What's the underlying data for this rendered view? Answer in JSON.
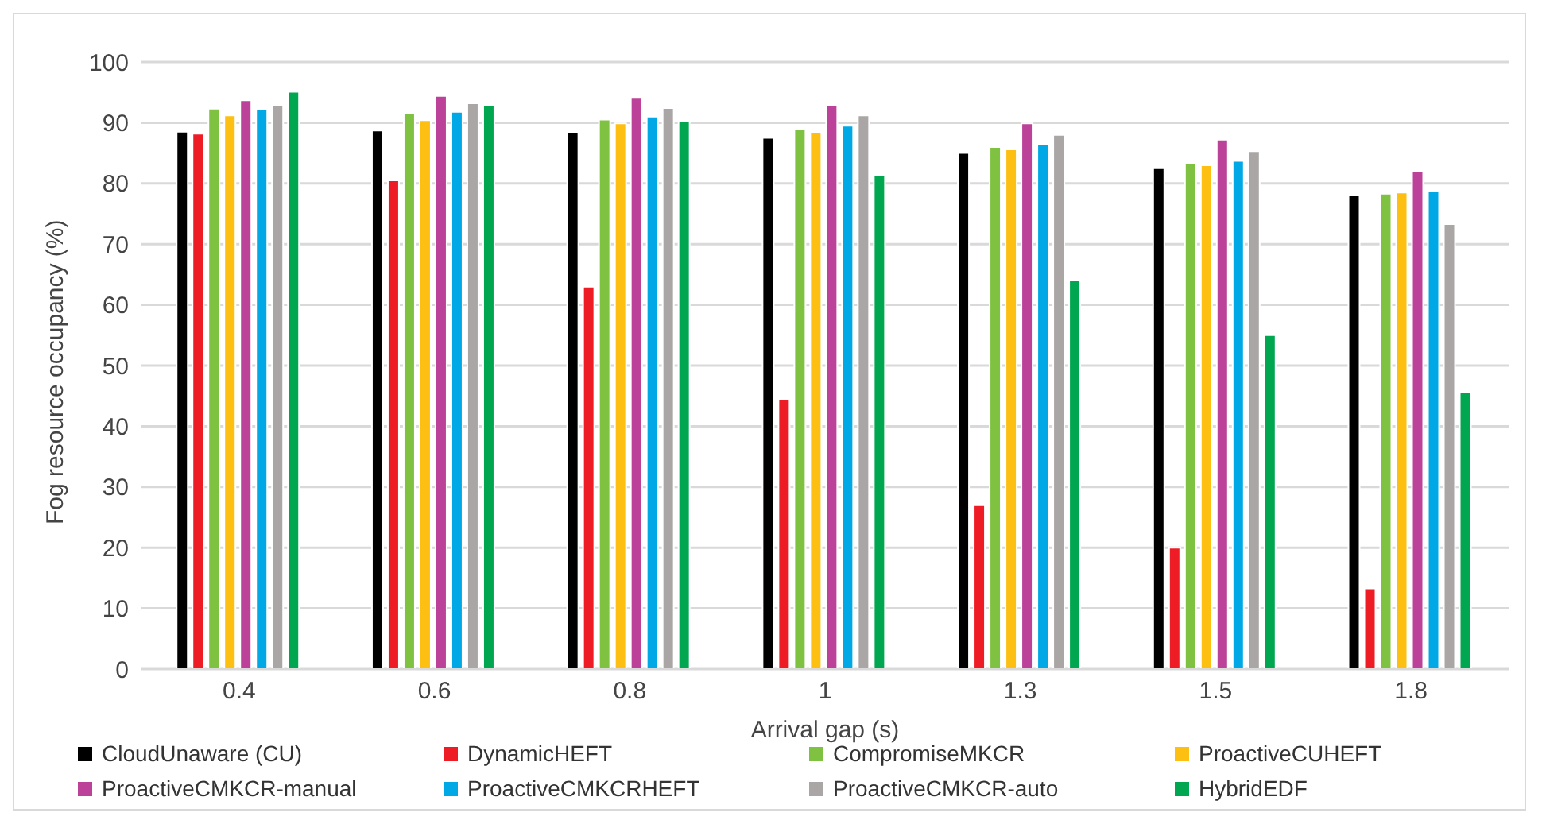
{
  "chart_data": {
    "type": "bar",
    "xlabel": "Arrival gap (s)",
    "ylabel": "Fog resource occupancy (%)",
    "categories": [
      "0.4",
      "0.6",
      "0.8",
      "1",
      "1.3",
      "1.5",
      "1.8"
    ],
    "series": [
      {
        "name": "CloudUnaware (CU)",
        "color": "#000000",
        "values": [
          88.5,
          88.7,
          88.4,
          87.5,
          85,
          82.5,
          78
        ]
      },
      {
        "name": "DynamicHEFT",
        "color": "#ee1c25",
        "values": [
          88.2,
          80.5,
          63,
          44.5,
          27,
          20,
          13.3
        ]
      },
      {
        "name": "CompromiseMKCR",
        "color": "#7fc241",
        "values": [
          92.3,
          91.6,
          90.5,
          89,
          86,
          83.3,
          78.3
        ]
      },
      {
        "name": "ProactiveCUHEFT",
        "color": "#fdbf12",
        "values": [
          91.2,
          90.4,
          89.9,
          88.4,
          85.6,
          83,
          78.5
        ]
      },
      {
        "name": "ProactiveCMKCR-manual",
        "color": "#bb4199",
        "values": [
          93.7,
          94.4,
          94.2,
          92.8,
          89.9,
          87.2,
          82
        ]
      },
      {
        "name": "ProactiveCMKCRHEFT",
        "color": "#00a9e6",
        "values": [
          92.2,
          91.8,
          91,
          89.5,
          86.5,
          83.7,
          78.8
        ]
      },
      {
        "name": "ProactiveCMKCR-auto",
        "color": "#aaa6a5",
        "values": [
          92.9,
          93.2,
          92.4,
          91.2,
          88,
          85.3,
          73.3
        ]
      },
      {
        "name": "HybridEDF",
        "color": "#00a650",
        "values": [
          95.1,
          92.9,
          90.2,
          81.3,
          64,
          55,
          45.6
        ]
      }
    ],
    "ylim": [
      0,
      100
    ],
    "yticks": [
      0,
      10,
      20,
      30,
      40,
      50,
      60,
      70,
      80,
      90,
      100
    ],
    "grid": "y",
    "legend": "bottom"
  }
}
